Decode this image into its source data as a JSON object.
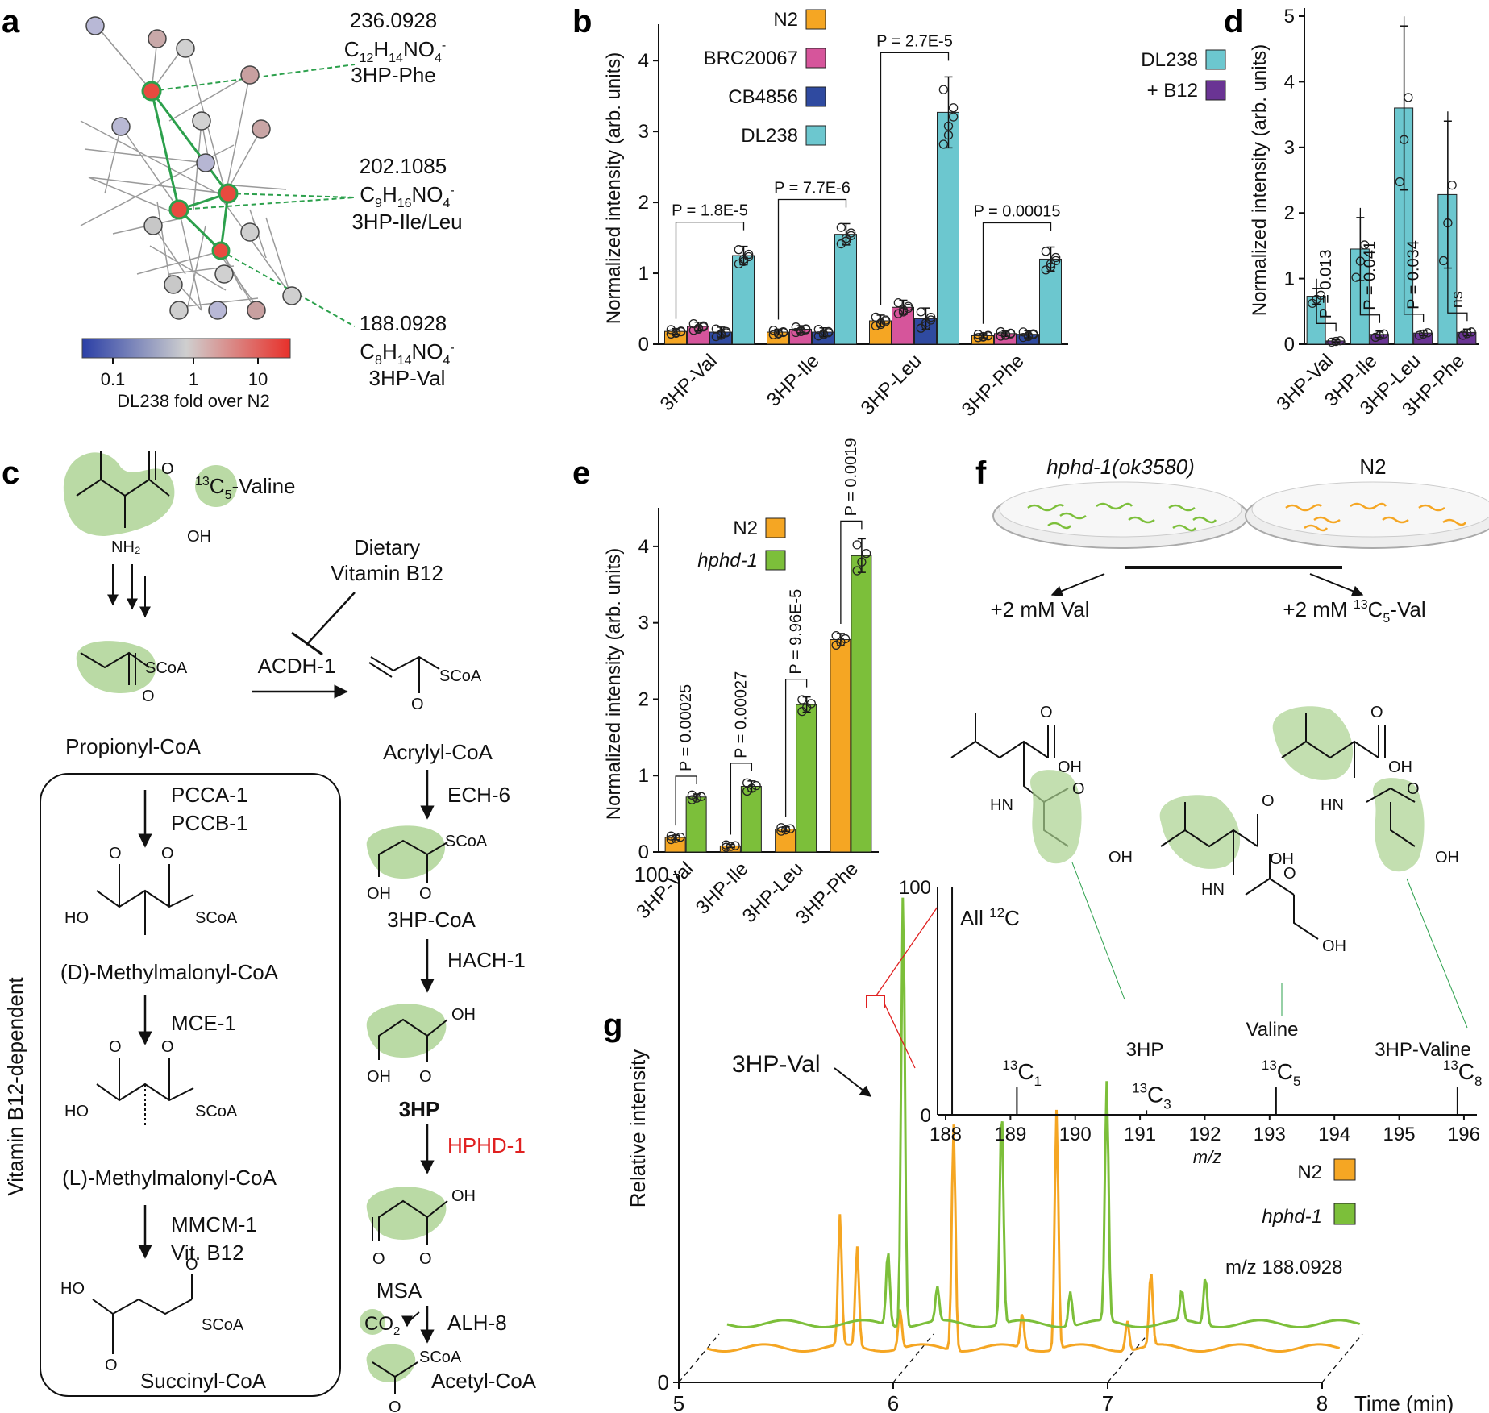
{
  "panels": [
    "a",
    "b",
    "c",
    "d",
    "e",
    "f",
    "g"
  ],
  "panel_a": {
    "annotations": [
      {
        "mass": "236.0928",
        "formula": "C12H14NO4-",
        "name": "3HP-Phe"
      },
      {
        "mass": "202.1085",
        "formula": "C9H16NO4-",
        "name": "3HP-Ile/Leu"
      },
      {
        "mass": "188.0928",
        "formula": "C8H14NO4-",
        "name": "3HP-Val"
      }
    ],
    "colorbar": {
      "ticks": [
        "0.1",
        "1",
        "10"
      ],
      "label": "DL238 fold over N2",
      "low_color": "#2b3fa6",
      "mid_color": "#cfcfcf",
      "high_color": "#e8302a"
    },
    "node_colors": {
      "high": "#e84a3f",
      "edge_highlight": "#2ca04c"
    }
  },
  "panel_c": {
    "left_pathway": [
      "Propionyl-CoA",
      "(D)-Methylmalonyl-CoA",
      "(L)-Methylmalonyl-CoA",
      "Succinyl-CoA"
    ],
    "left_enzymes": [
      "PCCA-1",
      "PCCB-1",
      "MCE-1",
      "MMCM-1",
      "Vit. B12"
    ],
    "box_label": "Vitamin B12-dependent",
    "tracer": "13C5-Valine",
    "right_pathway": [
      "Acrylyl-CoA",
      "3HP-CoA",
      "3HP",
      "MSA",
      "Acetyl-CoA"
    ],
    "right_enzymes": [
      "ECH-6",
      "HACH-1",
      "HPHD-1",
      "ALH-8"
    ],
    "acdh": "ACDH-1",
    "dietary_line1": "Dietary",
    "dietary_line2": "Vitamin B12",
    "co2": "CO2"
  },
  "panel_f": {
    "strain_left": "hphd-1(ok3580)",
    "strain_right": "N2",
    "cond_left": "+2 mM Val",
    "cond_right": "+2 mM 13C5-Val"
  },
  "chart_data": [
    {
      "panel": "b",
      "type": "bar",
      "ylabel": "Normalized  intensity (arb. units)",
      "ylim": [
        0,
        4.4
      ],
      "yticks": [
        0,
        1,
        2,
        3,
        4
      ],
      "categories": [
        "3HP-Val",
        "3HP-Ile",
        "3HP-Leu",
        "3HP-Phe"
      ],
      "series": [
        {
          "name": "N2",
          "color": "#f5a623",
          "values": [
            0.18,
            0.17,
            0.33,
            0.12
          ],
          "errors": [
            0.04,
            0.04,
            0.08,
            0.03
          ]
        },
        {
          "name": "BRC20067",
          "color": "#d6559b",
          "values": [
            0.25,
            0.21,
            0.52,
            0.15
          ],
          "errors": [
            0.06,
            0.05,
            0.1,
            0.04
          ]
        },
        {
          "name": "CB4856",
          "color": "#2f4aa0",
          "values": [
            0.17,
            0.17,
            0.36,
            0.14
          ],
          "errors": [
            0.07,
            0.06,
            0.15,
            0.05
          ]
        },
        {
          "name": "DL238",
          "color": "#6cc7cf",
          "values": [
            1.25,
            1.55,
            3.27,
            1.2
          ],
          "errors": [
            0.13,
            0.15,
            0.5,
            0.17
          ]
        }
      ],
      "pvalues": [
        "P = 1.8E-5",
        "P = 7.7E-6",
        "P = 2.7E-5",
        "P = 0.00015"
      ],
      "legend": "top-left"
    },
    {
      "panel": "d",
      "type": "bar",
      "ylabel": "Normalized  intensity (arb. units)",
      "ylim": [
        0,
        5
      ],
      "yticks": [
        0,
        1,
        2,
        3,
        4,
        5
      ],
      "categories": [
        "3HP-Val",
        "3HP-Ile",
        "3HP-Leu",
        "3HP-Phe"
      ],
      "series": [
        {
          "name": "DL238",
          "color": "#6cc7cf",
          "values": [
            0.73,
            1.45,
            3.6,
            2.28
          ],
          "errors": [
            0.12,
            0.48,
            1.25,
            1.12
          ]
        },
        {
          "name": "+ B12",
          "color": "#6a3494",
          "values": [
            0.05,
            0.15,
            0.17,
            0.18
          ],
          "errors": [
            0.02,
            0.05,
            0.04,
            0.05
          ]
        }
      ],
      "pvalues": [
        "P = 0.013",
        "P = 0.041",
        "P = 0.034",
        "ns"
      ],
      "legend": "top-left"
    },
    {
      "panel": "e",
      "type": "bar",
      "ylabel": "Normalized  intensity (arb. units)",
      "ylim": [
        0,
        4.4
      ],
      "yticks": [
        0,
        1,
        2,
        3,
        4
      ],
      "categories": [
        "3HP-Val",
        "3HP-Ile",
        "3HP-Leu",
        "3HP-Phe"
      ],
      "series": [
        {
          "name": "N2",
          "color": "#f5a623",
          "values": [
            0.19,
            0.08,
            0.3,
            2.78
          ],
          "errors": [
            0.03,
            0.02,
            0.03,
            0.08
          ]
        },
        {
          "name": "hphd-1",
          "color": "#7cbf3a",
          "values": [
            0.72,
            0.86,
            1.93,
            3.88
          ],
          "errors": [
            0.04,
            0.07,
            0.1,
            0.22
          ]
        }
      ],
      "pvalues": [
        "P = 0.00025",
        "P = 0.00027",
        "P = 9.96E-5",
        "P = 0.0019"
      ],
      "legend": "top-left"
    },
    {
      "panel": "g",
      "type": "line",
      "xlabel": "Time (min)",
      "ylabel": "Relative intensity",
      "xlim": [
        5,
        8
      ],
      "xticks": [
        5,
        6,
        7,
        8
      ],
      "yticks": [
        0,
        100
      ],
      "annotation": "3HP-Val",
      "mz_label": "m/z 188.0928",
      "series": [
        {
          "name": "N2",
          "color": "#f5a623",
          "peaks": [
            [
              5.62,
              30
            ],
            [
              5.7,
              23
            ],
            [
              5.9,
              9
            ],
            [
              6.15,
              52
            ],
            [
              6.47,
              8
            ],
            [
              6.63,
              55
            ],
            [
              6.96,
              7
            ],
            [
              7.07,
              17
            ]
          ]
        },
        {
          "name": "hphd-1",
          "color": "#7cbf3a",
          "peaks": [
            [
              5.75,
              17
            ],
            [
              5.82,
              100
            ],
            [
              5.98,
              8
            ],
            [
              6.28,
              50
            ],
            [
              6.6,
              8
            ],
            [
              6.77,
              55
            ],
            [
              7.12,
              7
            ],
            [
              7.23,
              11
            ]
          ]
        }
      ]
    },
    {
      "panel": "g-inset",
      "type": "bar",
      "xlabel": "m/z",
      "xlim": [
        188,
        196.2
      ],
      "ylim": [
        0,
        100
      ],
      "xticks": [
        188,
        189,
        190,
        191,
        192,
        193,
        194,
        195,
        196
      ],
      "yticks": [
        0,
        100
      ],
      "top_label": "All 12C",
      "peaks": [
        {
          "mz": 188.1,
          "intensity": 100,
          "label": ""
        },
        {
          "mz": 189.1,
          "intensity": 12,
          "label": "13C1"
        },
        {
          "mz": 191.1,
          "intensity": 2,
          "label": "13C3"
        },
        {
          "mz": 193.1,
          "intensity": 12,
          "label": "13C5"
        },
        {
          "mz": 195.9,
          "intensity": 12,
          "label": "13C8"
        }
      ],
      "compound_labels": [
        "3HP",
        "Valine",
        "3HP-Valine"
      ]
    }
  ]
}
